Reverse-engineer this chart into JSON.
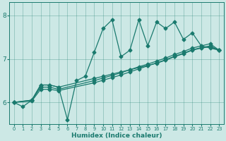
{
  "xlabel": "Humidex (Indice chaleur)",
  "xlim": [
    -0.5,
    23.5
  ],
  "ylim": [
    5.5,
    8.3
  ],
  "yticks": [
    6,
    7,
    8
  ],
  "xticks": [
    0,
    1,
    2,
    3,
    4,
    5,
    6,
    7,
    8,
    9,
    10,
    11,
    12,
    13,
    14,
    15,
    16,
    17,
    18,
    19,
    20,
    21,
    22,
    23
  ],
  "bg_color": "#cce8e5",
  "line_color": "#1a7a6e",
  "line1_x": [
    0,
    1,
    2,
    3,
    4,
    5,
    6,
    7,
    8,
    9,
    10,
    11,
    12,
    13,
    14,
    15,
    16,
    17,
    18,
    19,
    20,
    21,
    22,
    23
  ],
  "line1_y": [
    6.0,
    5.9,
    6.05,
    6.4,
    6.4,
    6.35,
    5.6,
    6.5,
    6.6,
    7.15,
    7.7,
    7.9,
    7.05,
    7.2,
    7.9,
    7.3,
    7.85,
    7.7,
    7.85,
    7.45,
    7.6,
    7.3,
    7.25,
    7.2
  ],
  "line2_x": [
    0,
    2,
    3,
    4,
    5,
    9,
    10,
    11,
    12,
    13,
    14,
    15,
    16,
    17,
    18,
    19,
    20,
    21,
    22,
    23
  ],
  "line2_y": [
    6.0,
    6.05,
    6.4,
    6.4,
    6.35,
    6.55,
    6.6,
    6.65,
    6.7,
    6.75,
    6.8,
    6.85,
    6.9,
    6.97,
    7.05,
    7.12,
    7.2,
    7.25,
    7.28,
    7.2
  ],
  "line3_x": [
    0,
    2,
    3,
    4,
    5,
    9,
    10,
    11,
    12,
    13,
    14,
    15,
    16,
    17,
    18,
    19,
    20,
    21,
    22,
    23
  ],
  "line3_y": [
    6.0,
    6.05,
    6.35,
    6.35,
    6.3,
    6.5,
    6.56,
    6.62,
    6.68,
    6.75,
    6.82,
    6.88,
    6.95,
    7.02,
    7.1,
    7.17,
    7.25,
    7.3,
    7.35,
    7.2
  ],
  "line4_x": [
    0,
    2,
    3,
    4,
    5,
    9,
    10,
    11,
    12,
    13,
    14,
    15,
    16,
    17,
    18,
    19,
    20,
    21,
    22,
    23
  ],
  "line4_y": [
    6.0,
    6.03,
    6.3,
    6.3,
    6.27,
    6.45,
    6.51,
    6.57,
    6.63,
    6.7,
    6.77,
    6.84,
    6.91,
    6.98,
    7.06,
    7.13,
    7.21,
    7.26,
    7.3,
    7.2
  ],
  "markersize": 2.5,
  "linewidth": 0.9
}
